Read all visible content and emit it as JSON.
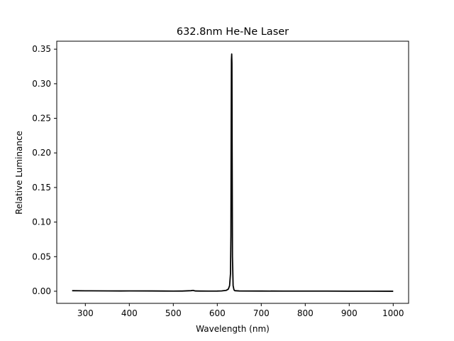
{
  "chart_data": {
    "type": "line",
    "title": "632.8nm He-Ne Laser",
    "xlabel": "Wavelength (nm)",
    "ylabel": "Relative Luminance",
    "xlim": [
      235,
      1035
    ],
    "ylim": [
      -0.0175,
      0.3615
    ],
    "xticks": [
      300,
      400,
      500,
      600,
      700,
      800,
      900,
      1000
    ],
    "yticks": [
      0.0,
      0.05,
      0.1,
      0.15,
      0.2,
      0.25,
      0.3,
      0.35
    ],
    "ytick_labels": [
      "0.00",
      "0.05",
      "0.10",
      "0.15",
      "0.20",
      "0.25",
      "0.30",
      "0.35"
    ],
    "grid": false,
    "legend": false,
    "series": [
      {
        "color": "#000000",
        "x": [
          270,
          300,
          350,
          380,
          400,
          450,
          480,
          500,
          520,
          540,
          545,
          550,
          560,
          580,
          600,
          610,
          620,
          625,
          628,
          630,
          631,
          631.7,
          632.2,
          632.8,
          633.3,
          633.8,
          634.5,
          636,
          638,
          640,
          650,
          700,
          750,
          800,
          850,
          900,
          950,
          1000
        ],
        "y": [
          0.0008,
          0.0006,
          0.0005,
          0.0004,
          0.0005,
          0.0004,
          0.0003,
          0.0002,
          0.0003,
          0.0008,
          0.0012,
          0.0004,
          0.0003,
          0.0002,
          0.0003,
          0.0005,
          0.0012,
          0.003,
          0.008,
          0.025,
          0.08,
          0.25,
          0.335,
          0.343,
          0.33,
          0.2,
          0.05,
          0.008,
          0.002,
          0.0008,
          0.0004,
          0.0003,
          0.0002,
          0.0002,
          0.0002,
          0.0001,
          0.0001,
          0.0
        ]
      }
    ]
  }
}
